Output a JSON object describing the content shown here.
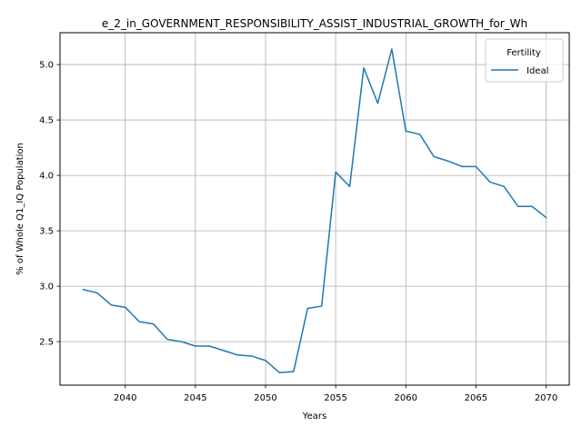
{
  "chart_data": {
    "type": "line",
    "title": "e_2_in_GOVERNMENT_RESPONSIBILITY_ASSIST_INDUSTRIAL_GROWTH_for_Wh",
    "xlabel": "Years",
    "ylabel": "% of Whole Q1_IQ Population",
    "xlim": [
      2035.35,
      2071.65
    ],
    "ylim": [
      2.1075,
      5.2875
    ],
    "xticks": [
      2040,
      2045,
      2050,
      2055,
      2060,
      2065,
      2070
    ],
    "yticks": [
      2.5,
      3.0,
      3.5,
      4.0,
      4.5,
      5.0
    ],
    "xtick_labels": [
      "2040",
      "2045",
      "2050",
      "2055",
      "2060",
      "2065",
      "2070"
    ],
    "ytick_labels": [
      "2.5",
      "3.0",
      "3.5",
      "4.0",
      "4.5",
      "5.0"
    ],
    "grid": true,
    "legend": {
      "title": "Fertility",
      "position": "top-right"
    },
    "series": [
      {
        "name": "Ideal",
        "color": "#1f77b4",
        "x": [
          2037,
          2038,
          2039,
          2040,
          2041,
          2042,
          2043,
          2044,
          2045,
          2046,
          2047,
          2048,
          2049,
          2050,
          2051,
          2052,
          2053,
          2054,
          2055,
          2056,
          2057,
          2058,
          2059,
          2060,
          2061,
          2062,
          2063,
          2064,
          2065,
          2066,
          2067,
          2068,
          2069,
          2070
        ],
        "values": [
          2.97,
          2.94,
          2.83,
          2.81,
          2.68,
          2.66,
          2.52,
          2.5,
          2.46,
          2.46,
          2.42,
          2.38,
          2.37,
          2.33,
          2.22,
          2.23,
          2.8,
          2.82,
          4.03,
          3.9,
          4.97,
          4.65,
          5.14,
          4.4,
          4.37,
          4.17,
          4.13,
          4.08,
          4.08,
          3.94,
          3.9,
          3.72,
          3.72,
          3.62
        ]
      }
    ]
  }
}
